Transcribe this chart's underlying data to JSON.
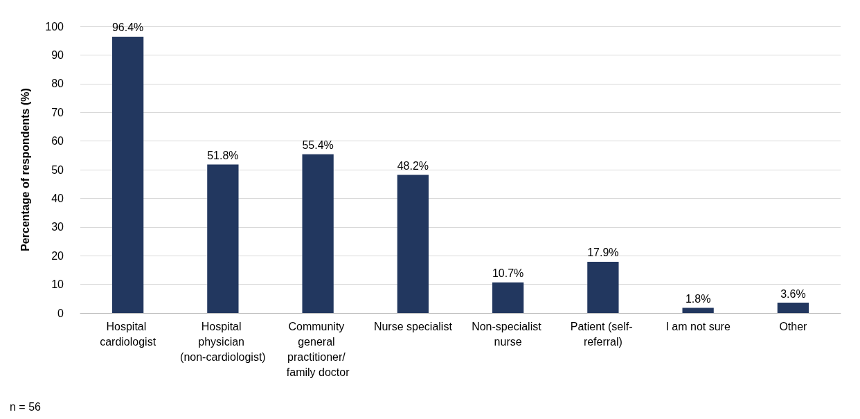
{
  "chart_data": {
    "type": "bar",
    "ylabel": "Percentage of respondents (%)",
    "categories": [
      "Hospital cardiologist",
      "Hospital physician (non-cardiologist)",
      "Community general practitioner/ family doctor",
      "Nurse specialist",
      "Non-specialist nurse",
      "Patient (self- referral)",
      "I am not sure",
      "Other"
    ],
    "values": [
      96.4,
      51.8,
      55.4,
      48.2,
      10.7,
      17.9,
      1.8,
      3.6
    ],
    "value_labels": [
      "96.4%",
      "51.8%",
      "55.4%",
      "48.2%",
      "10.7%",
      "17.9%",
      "1.8%",
      "3.6%"
    ],
    "color": "#22375f",
    "ylim": [
      0,
      100
    ],
    "yticks": [
      0,
      10,
      20,
      30,
      40,
      50,
      60,
      70,
      80,
      90,
      100
    ],
    "grid": "y",
    "annotations": [
      "n = 56"
    ]
  }
}
